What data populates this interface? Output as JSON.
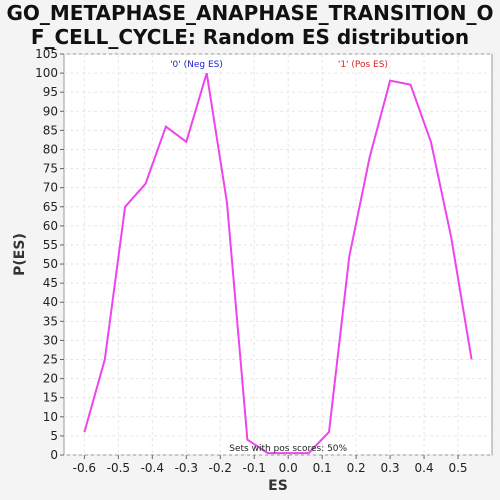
{
  "title_line1": "GO_METAPHASE_ANAPHASE_TRANSITION_O",
  "title_line2": "F_CELL_CYCLE: Random ES distribution",
  "chart_data": {
    "type": "line",
    "xlabel": "ES",
    "ylabel": "P(ES)",
    "xlim": [
      -0.66,
      0.6
    ],
    "ylim": [
      0,
      105
    ],
    "xticks": [
      "-0.6",
      "-0.5",
      "-0.4",
      "-0.3",
      "-0.2",
      "-0.1",
      "0.0",
      "0.1",
      "0.2",
      "0.3",
      "0.4",
      "0.5"
    ],
    "xtick_values": [
      -0.6,
      -0.5,
      -0.4,
      -0.3,
      -0.2,
      -0.1,
      0.0,
      0.1,
      0.2,
      0.3,
      0.4,
      0.5
    ],
    "yticks": [
      0,
      5,
      10,
      15,
      20,
      25,
      30,
      35,
      40,
      45,
      50,
      55,
      60,
      65,
      70,
      75,
      80,
      85,
      90,
      95,
      100,
      105
    ],
    "grid": true,
    "line_color": "#ee44ee",
    "series": [
      {
        "x": [
          -0.6,
          -0.54,
          -0.48,
          -0.42,
          -0.36,
          -0.3,
          -0.24,
          -0.18,
          -0.12,
          -0.06,
          0.0,
          0.06,
          0.12,
          0.18,
          0.24,
          0.3,
          0.36,
          0.42,
          0.48,
          0.54
        ],
        "y": [
          6,
          25,
          65,
          71,
          86,
          82,
          100,
          66,
          4,
          0.5,
          0.5,
          0.5,
          6,
          52,
          78,
          98,
          97,
          82,
          57,
          25
        ]
      }
    ],
    "annotations": [
      {
        "text": "'0' (Neg ES)",
        "color": "#2222cc"
      },
      {
        "text": "'1' (Pos ES)",
        "color": "#dd2222"
      },
      {
        "text": "Sets with pos scores: 50%",
        "color": "#222222"
      }
    ]
  }
}
